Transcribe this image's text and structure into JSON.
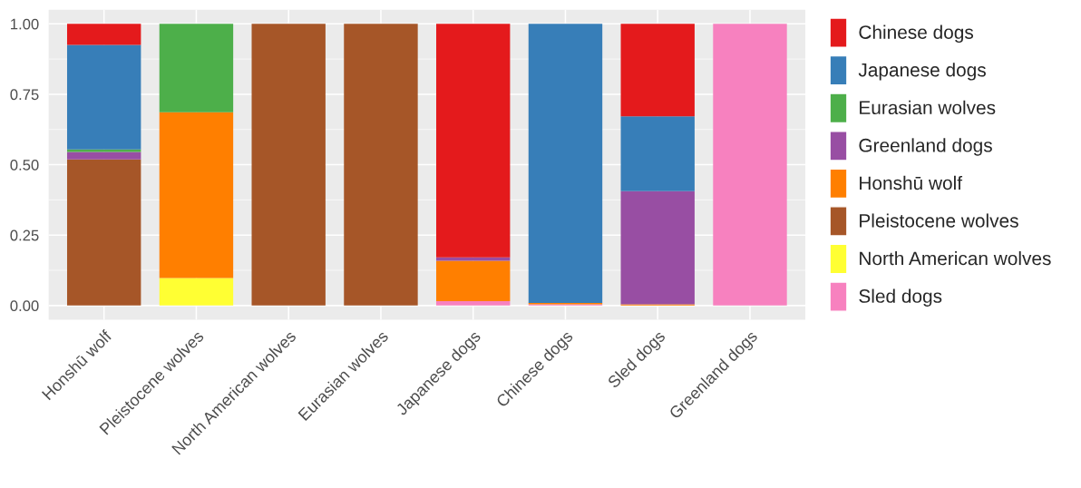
{
  "chart_data": {
    "type": "bar",
    "stacked": true,
    "categories": [
      "Honshū wolf",
      "Pleistocene wolves",
      "North American wolves",
      "Eurasian wolves",
      "Japanese dogs",
      "Chinese dogs",
      "Sled dogs",
      "Greenland dogs"
    ],
    "series": [
      {
        "name": "Sled dogs",
        "color": "#f781bf",
        "values": [
          0,
          0,
          0,
          0,
          0.016,
          0.004,
          0,
          1
        ]
      },
      {
        "name": "North American wolves",
        "color": "#ffff33",
        "values": [
          0,
          0.098,
          0,
          0,
          0,
          0,
          0,
          0
        ]
      },
      {
        "name": "Pleistocene wolves",
        "color": "#a65628",
        "values": [
          0.519,
          0,
          1,
          1,
          0,
          0,
          0,
          0
        ]
      },
      {
        "name": "Honshū wolf",
        "color": "#ff7f00",
        "values": [
          0,
          0.588,
          0,
          0,
          0.143,
          0.005,
          0.004,
          0
        ]
      },
      {
        "name": "Greenland dogs",
        "color": "#984ea3",
        "values": [
          0.026,
          0,
          0,
          0,
          0.012,
          0,
          0.402,
          0
        ]
      },
      {
        "name": "Eurasian wolves",
        "color": "#4daf4a",
        "values": [
          0.009,
          0.314,
          0,
          0,
          0,
          0,
          0,
          0
        ]
      },
      {
        "name": "Japanese dogs",
        "color": "#377eb8",
        "values": [
          0.371,
          0,
          0,
          0,
          0,
          0.991,
          0.266,
          0
        ]
      },
      {
        "name": "Chinese dogs",
        "color": "#e41a1c",
        "values": [
          0.075,
          0,
          0,
          0,
          0.829,
          0,
          0.328,
          0
        ]
      }
    ],
    "ylim": [
      -0.05,
      1.05
    ],
    "yticks": [
      {
        "value": 0,
        "label": "0.00"
      },
      {
        "value": 0.25,
        "label": "0.25"
      },
      {
        "value": 0.5,
        "label": "0.50"
      },
      {
        "value": 0.75,
        "label": "0.75"
      },
      {
        "value": 1,
        "label": "1.00"
      }
    ],
    "grid": true,
    "legend": "right"
  }
}
